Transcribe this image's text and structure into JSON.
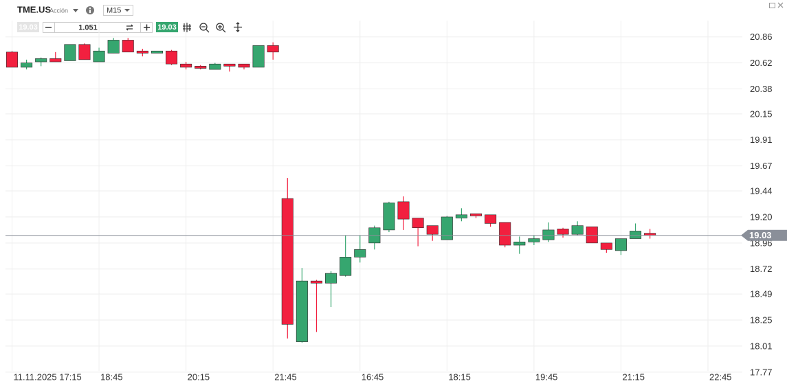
{
  "toolbar": {
    "symbol": "TME.US",
    "instrument_type": "Acción",
    "timeframe": "M15",
    "sell_price": 19.03,
    "volume": 1.051,
    "buy_price": 19.03
  },
  "chart_data": {
    "type": "candlestick",
    "categories": [
      "11.11.2025 17:15",
      null,
      null,
      null,
      null,
      null,
      "18:45",
      null,
      null,
      null,
      null,
      null,
      "20:15",
      null,
      null,
      null,
      null,
      null,
      "21:45",
      null,
      null,
      null,
      null,
      null,
      "16:45",
      null,
      null,
      null,
      null,
      null,
      "18:15",
      null,
      null,
      null,
      null,
      null,
      "19:45",
      null,
      null,
      null,
      null,
      null,
      "21:15",
      null,
      null,
      null,
      null,
      null,
      "22:45"
    ],
    "open": [
      20.72,
      20.58,
      20.63,
      20.66,
      20.64,
      20.79,
      20.63,
      20.71,
      20.83,
      20.73,
      20.71,
      20.73,
      20.61,
      20.59,
      20.56,
      20.61,
      20.61,
      20.58,
      20.78,
      19.37,
      18.05,
      18.61,
      18.59,
      18.66,
      18.83,
      18.96,
      19.08,
      19.34,
      19.19,
      19.12,
      18.99,
      19.19,
      19.23,
      19.22,
      19.15,
      18.94,
      18.97,
      18.99,
      19.09,
      19.04,
      19.11,
      18.96,
      18.89,
      19.0,
      19.05,
      null,
      null,
      null,
      null
    ],
    "high": [
      20.73,
      20.65,
      20.67,
      20.72,
      20.79,
      20.8,
      20.76,
      20.85,
      20.85,
      20.75,
      20.73,
      20.74,
      20.63,
      20.6,
      20.62,
      20.61,
      20.61,
      20.78,
      20.81,
      19.56,
      18.73,
      18.62,
      18.7,
      19.03,
      19.03,
      19.12,
      19.34,
      19.39,
      19.19,
      19.12,
      19.21,
      19.28,
      19.23,
      19.22,
      19.15,
      19.02,
      19.03,
      19.15,
      19.1,
      19.16,
      19.11,
      18.96,
      19.0,
      19.14,
      19.09,
      null,
      null,
      null,
      null
    ],
    "low": [
      20.58,
      20.56,
      20.59,
      20.63,
      20.64,
      20.65,
      20.63,
      20.71,
      20.72,
      20.68,
      20.71,
      20.6,
      20.56,
      20.56,
      20.56,
      20.54,
      20.56,
      20.58,
      20.65,
      18.08,
      18.04,
      18.14,
      18.37,
      18.65,
      18.78,
      18.9,
      19.06,
      19.08,
      18.93,
      18.98,
      18.99,
      19.16,
      19.19,
      19.11,
      18.92,
      18.86,
      18.94,
      18.97,
      19.01,
      19.03,
      18.96,
      18.87,
      18.85,
      19.0,
      19.0,
      null,
      null,
      null,
      null
    ],
    "close": [
      20.58,
      20.62,
      20.66,
      20.63,
      20.79,
      20.65,
      20.73,
      20.83,
      20.72,
      20.71,
      20.73,
      20.61,
      20.58,
      20.57,
      20.61,
      20.59,
      20.58,
      20.78,
      20.72,
      18.21,
      18.61,
      18.59,
      18.68,
      18.83,
      18.9,
      19.1,
      19.33,
      19.18,
      19.1,
      19.04,
      19.2,
      19.22,
      19.21,
      19.14,
      18.94,
      18.97,
      19.0,
      19.08,
      19.04,
      19.12,
      18.96,
      18.9,
      19.0,
      19.07,
      19.03,
      null,
      null,
      null,
      null
    ],
    "up_color": "#36a66f",
    "down_color": "#f2203f",
    "last_price": 19.03,
    "ylim": [
      17.75,
      21.01
    ],
    "yticks": [
      20.86,
      20.62,
      20.38,
      20.15,
      19.91,
      19.67,
      19.44,
      {
        "value": 19.2,
        "label": "19.20"
      },
      18.96,
      18.72,
      18.49,
      18.25,
      18.01,
      17.77
    ],
    "grid": true
  }
}
